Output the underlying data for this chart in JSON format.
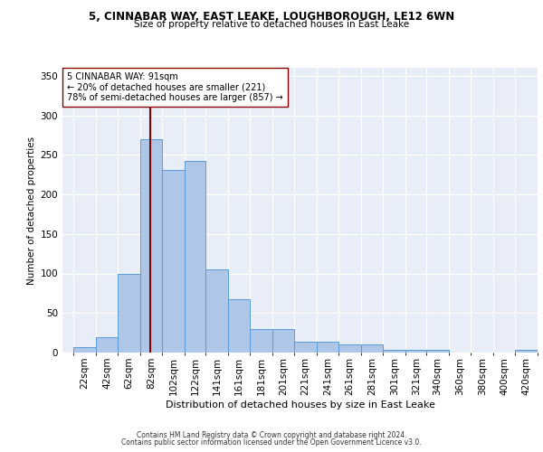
{
  "title1": "5, CINNABAR WAY, EAST LEAKE, LOUGHBOROUGH, LE12 6WN",
  "title2": "Size of property relative to detached houses in East Leake",
  "xlabel": "Distribution of detached houses by size in East Leake",
  "ylabel": "Number of detached properties",
  "footnote1": "Contains HM Land Registry data © Crown copyright and database right 2024.",
  "footnote2": "Contains public sector information licensed under the Open Government Licence v3.0.",
  "annotation_line1": "5 CINNABAR WAY: 91sqm",
  "annotation_line2": "← 20% of detached houses are smaller (221)",
  "annotation_line3": "78% of semi-detached houses are larger (857) →",
  "property_size": 91,
  "bar_categories": [
    "22sqm",
    "42sqm",
    "62sqm",
    "82sqm",
    "102sqm",
    "122sqm",
    "141sqm",
    "161sqm",
    "181sqm",
    "201sqm",
    "221sqm",
    "241sqm",
    "261sqm",
    "281sqm",
    "301sqm",
    "321sqm",
    "340sqm",
    "360sqm",
    "380sqm",
    "400sqm",
    "420sqm"
  ],
  "bar_values": [
    7,
    19,
    99,
    270,
    231,
    242,
    105,
    67,
    30,
    30,
    14,
    14,
    10,
    10,
    4,
    4,
    4,
    0,
    0,
    0,
    3
  ],
  "bar_edges": [
    22,
    42,
    62,
    82,
    102,
    122,
    141,
    161,
    181,
    201,
    221,
    241,
    261,
    281,
    301,
    321,
    340,
    360,
    380,
    400,
    420
  ],
  "bar_color": "#aec6e8",
  "bar_edgecolor": "#5b9bd5",
  "vline_x": 91,
  "vline_color": "#8b0000",
  "bg_color": "#e8eef7",
  "grid_color": "#d0d8e8",
  "ylim": [
    0,
    360
  ],
  "yticks": [
    0,
    50,
    100,
    150,
    200,
    250,
    300,
    350
  ],
  "xlim": [
    12,
    440
  ]
}
